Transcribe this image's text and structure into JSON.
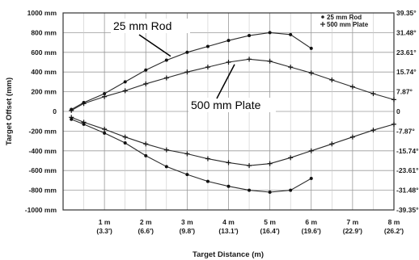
{
  "chart_data": {
    "type": "line",
    "xlabel": "Target Distance (m)",
    "ylabel": "Target Offset (mm)",
    "xlim": [
      0,
      8
    ],
    "ylim": [
      -1000,
      1000
    ],
    "x_ticks": [
      {
        "x": 1,
        "line1": "1 m",
        "line2": "(3.3')"
      },
      {
        "x": 2,
        "line1": "2 m",
        "line2": "(6.6')"
      },
      {
        "x": 3,
        "line1": "3 m",
        "line2": "(9.8')"
      },
      {
        "x": 4,
        "line1": "4 m",
        "line2": "(13.1')"
      },
      {
        "x": 5,
        "line1": "5 m",
        "line2": "(16.4')"
      },
      {
        "x": 6,
        "line1": "6 m",
        "line2": "(19.6')"
      },
      {
        "x": 7,
        "line1": "7 m",
        "line2": "(22.9')"
      },
      {
        "x": 8,
        "line1": "8 m",
        "line2": "(26.2')"
      }
    ],
    "y_ticks": [
      {
        "y": 1000,
        "label": "1000 mm"
      },
      {
        "y": 800,
        "label": "800 mm"
      },
      {
        "y": 600,
        "label": "600 mm"
      },
      {
        "y": 400,
        "label": "400 mm"
      },
      {
        "y": 200,
        "label": "200 mm"
      },
      {
        "y": 0,
        "label": "0"
      },
      {
        "y": -200,
        "label": "-200 mm"
      },
      {
        "y": -400,
        "label": "-400 mm"
      },
      {
        "y": -600,
        "label": "-600 mm"
      },
      {
        "y": -800,
        "label": "-800 mm"
      },
      {
        "y": -1000,
        "label": "-1000 mm"
      }
    ],
    "y2_ticks": [
      {
        "y": 1000,
        "label": "39.35°"
      },
      {
        "y": 800,
        "label": "31.48°"
      },
      {
        "y": 600,
        "label": "23.61°"
      },
      {
        "y": 400,
        "label": "15.74°"
      },
      {
        "y": 200,
        "label": "7.87°"
      },
      {
        "y": 0,
        "label": "0"
      },
      {
        "y": -200,
        "label": "-7.87°"
      },
      {
        "y": -400,
        "label": "-15.74°"
      },
      {
        "y": -600,
        "label": "-23.61°"
      },
      {
        "y": -800,
        "label": "-31.48°"
      },
      {
        "y": -1000,
        "label": "-39.35°"
      }
    ],
    "grid": true,
    "legend": "top-right",
    "series": [
      {
        "name": "25 mm Rod",
        "marker": "dot",
        "curves": [
          [
            [
              0.2,
              20
            ],
            [
              0.5,
              90
            ],
            [
              1.0,
              180
            ],
            [
              1.5,
              300
            ],
            [
              2.0,
              420
            ],
            [
              2.5,
              520
            ],
            [
              3.0,
              600
            ],
            [
              3.5,
              660
            ],
            [
              4.0,
              720
            ],
            [
              4.5,
              770
            ],
            [
              5.0,
              800
            ],
            [
              5.5,
              780
            ],
            [
              6.0,
              640
            ]
          ],
          [
            [
              0.2,
              -80
            ],
            [
              0.5,
              -130
            ],
            [
              1.0,
              -220
            ],
            [
              1.5,
              -320
            ],
            [
              2.0,
              -450
            ],
            [
              2.5,
              -560
            ],
            [
              3.0,
              -640
            ],
            [
              3.5,
              -710
            ],
            [
              4.0,
              -760
            ],
            [
              4.5,
              -800
            ],
            [
              5.0,
              -820
            ],
            [
              5.5,
              -800
            ],
            [
              6.0,
              -680
            ]
          ]
        ]
      },
      {
        "name": "500 mm Plate",
        "marker": "plus",
        "curves": [
          [
            [
              0.2,
              10
            ],
            [
              0.5,
              80
            ],
            [
              1.0,
              150
            ],
            [
              1.5,
              210
            ],
            [
              2.0,
              280
            ],
            [
              2.5,
              340
            ],
            [
              3.0,
              400
            ],
            [
              3.5,
              450
            ],
            [
              4.0,
              500
            ],
            [
              4.5,
              530
            ],
            [
              5.0,
              510
            ],
            [
              5.5,
              450
            ],
            [
              6.0,
              390
            ],
            [
              6.5,
              320
            ],
            [
              7.0,
              250
            ],
            [
              7.5,
              180
            ],
            [
              8.0,
              120
            ]
          ],
          [
            [
              0.2,
              -60
            ],
            [
              0.5,
              -110
            ],
            [
              1.0,
              -180
            ],
            [
              1.5,
              -260
            ],
            [
              2.0,
              -330
            ],
            [
              2.5,
              -390
            ],
            [
              3.0,
              -430
            ],
            [
              3.5,
              -480
            ],
            [
              4.0,
              -520
            ],
            [
              4.5,
              -550
            ],
            [
              5.0,
              -530
            ],
            [
              5.5,
              -470
            ],
            [
              6.0,
              -400
            ],
            [
              6.5,
              -330
            ],
            [
              7.0,
              -260
            ],
            [
              7.5,
              -190
            ],
            [
              8.0,
              -130
            ]
          ]
        ]
      }
    ],
    "annotations": [
      {
        "text": "25 mm Rod",
        "arrow_to": [
          2.6,
          560
        ]
      },
      {
        "text": "500 mm Plate",
        "arrow_to": [
          4.0,
          510
        ]
      }
    ]
  }
}
